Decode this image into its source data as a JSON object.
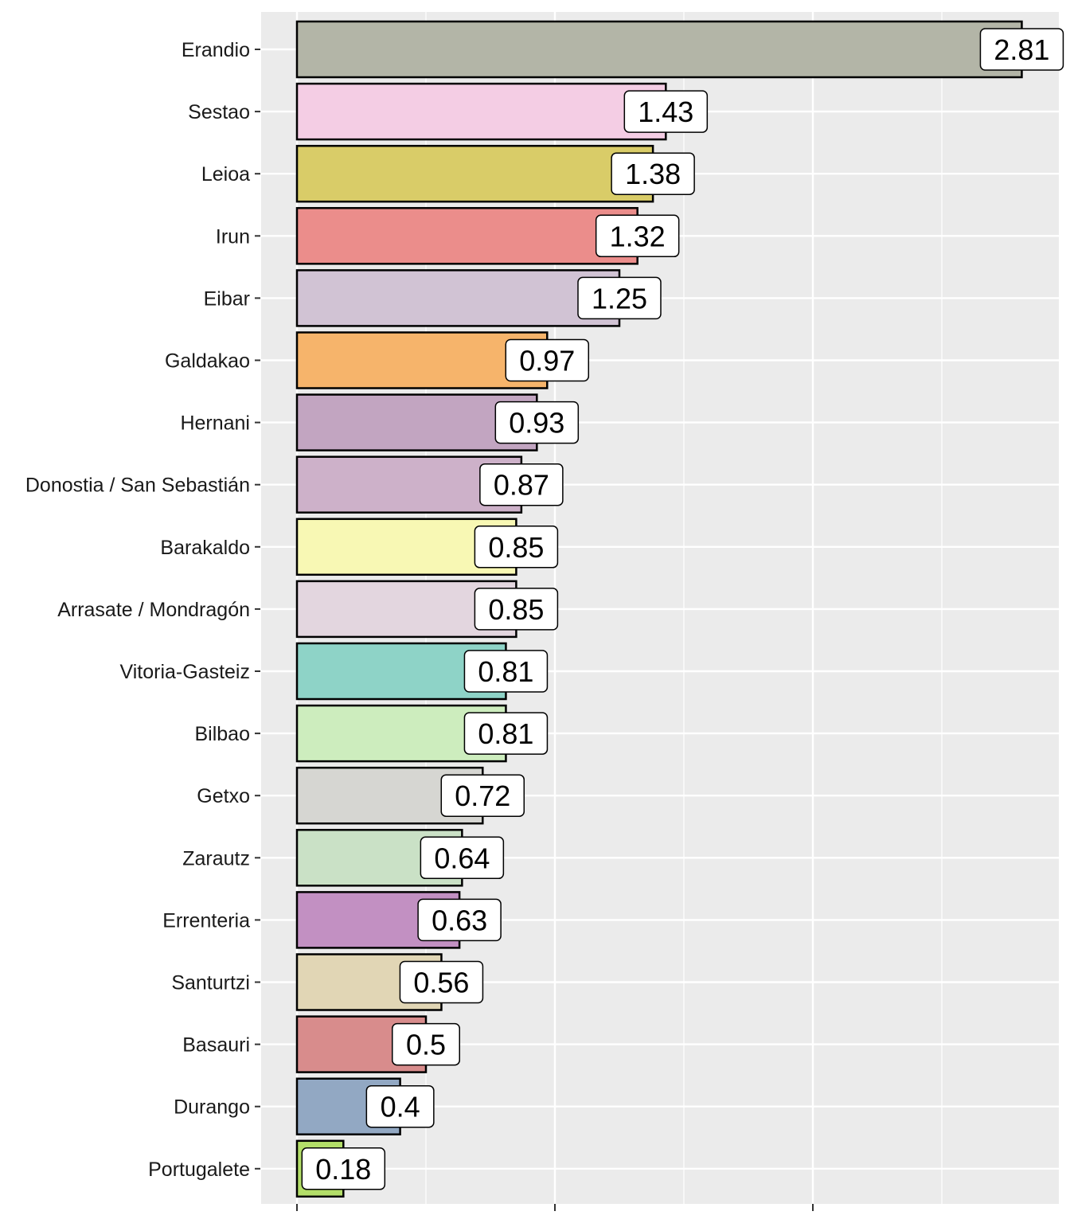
{
  "chart_data": {
    "type": "bar",
    "orientation": "horizontal",
    "title": "",
    "xlabel": "",
    "ylabel": "",
    "xlim": [
      0,
      2.95
    ],
    "x_major_ticks": [
      0,
      1,
      2
    ],
    "x_tick_labels_shown": false,
    "grid": true,
    "legend": "none",
    "categories": [
      "Erandio",
      "Sestao",
      "Leioa",
      "Irun",
      "Eibar",
      "Galdakao",
      "Hernani",
      "Donostia / San Sebastián",
      "Barakaldo",
      "Arrasate / Mondragón",
      "Vitoria-Gasteiz",
      "Bilbao",
      "Getxo",
      "Zarautz",
      "Errenteria",
      "Santurtzi",
      "Basauri",
      "Durango",
      "Portugalete"
    ],
    "values": [
      2.81,
      1.43,
      1.38,
      1.32,
      1.25,
      0.97,
      0.93,
      0.87,
      0.85,
      0.85,
      0.81,
      0.81,
      0.72,
      0.64,
      0.63,
      0.56,
      0.5,
      0.4,
      0.18
    ],
    "data_labels": [
      "2.81",
      "1.43",
      "1.38",
      "1.32",
      "1.25",
      "0.97",
      "0.93",
      "0.87",
      "0.85",
      "0.85",
      "0.81",
      "0.81",
      "0.72",
      "0.64",
      "0.63",
      "0.56",
      "0.5",
      "0.4",
      "0.18"
    ],
    "colors": [
      "#B3B5A7",
      "#F4CDE4",
      "#D9CC68",
      "#EB8D8B",
      "#D1C3D4",
      "#F6B46B",
      "#C2A5C1",
      "#CDB1C9",
      "#F8F8B4",
      "#E3D6DF",
      "#8ED3C7",
      "#CDEDBE",
      "#D6D6D2",
      "#CAE1C6",
      "#C290C2",
      "#E1D6B5",
      "#D88C8C",
      "#92A8C3",
      "#B3DE69"
    ],
    "style": {
      "panel_background": "#EBEBEB",
      "grid_color": "#FFFFFF",
      "bar_outline": "#000000",
      "label_fill": "#FFFFFF"
    }
  }
}
